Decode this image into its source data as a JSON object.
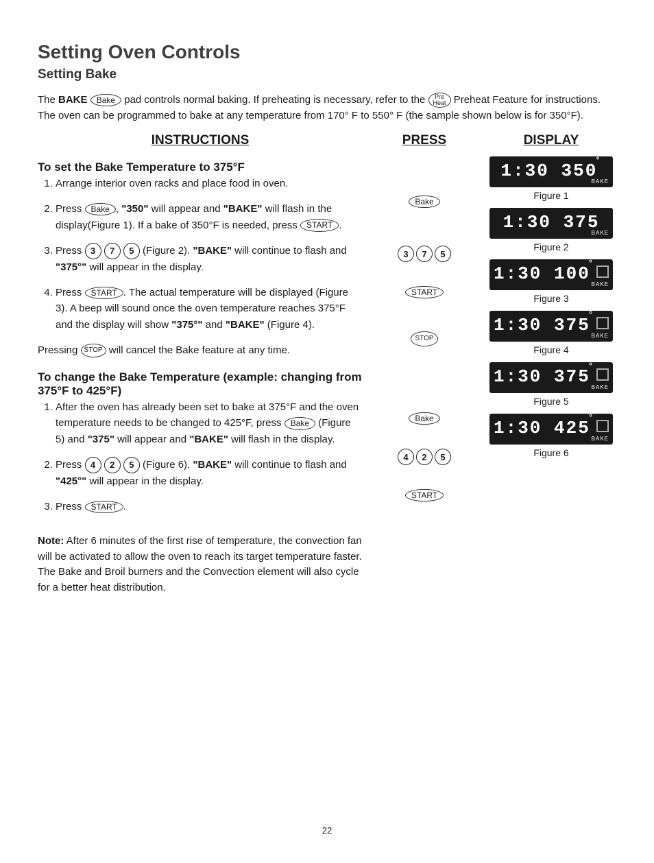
{
  "title": "Setting Oven Controls",
  "subtitle": "Setting Bake",
  "intro_parts": {
    "p1": "The ",
    "bake_word": "BAKE",
    "bake_btn": "Bake",
    "p2": " pad controls normal baking. If preheating is necessary, refer to the ",
    "preheat_btn_l1": "Pre",
    "preheat_btn_l2": "Heat",
    "p3": " Preheat Feature for instructions. The oven can be programmed to bake at any temperature from 170° F to 550° F (the sample shown below is for 350°F)."
  },
  "col_headers": {
    "instructions": "INSTRUCTIONS",
    "press": "PRESS",
    "display": "DISPLAY"
  },
  "section1": {
    "heading": "To set the Bake Temperature to 375°F",
    "item1": "Arrange interior oven racks and place food in oven.",
    "item2_a": "Press ",
    "item2_btn": "Bake",
    "item2_b": ", ",
    "item2_v1": "\"350\"",
    "item2_c": " will appear and ",
    "item2_v2": "\"BAKE\"",
    "item2_d": " will flash in the display(Figure 1). If a bake of 350°F is needed, press ",
    "item2_btn2": "START",
    "item2_e": ".",
    "item3_a": "Press ",
    "item3_d1": "3",
    "item3_d2": "7",
    "item3_d3": "5",
    "item3_b": " (Figure 2). ",
    "item3_v1": "\"BAKE\"",
    "item3_c": " will continue to flash and ",
    "item3_v2": "\"375°\"",
    "item3_d": " will appear in the display.",
    "item4_a": "Press ",
    "item4_btn": "START",
    "item4_b": ". The actual temperature will be displayed (Figure 3). A beep will sound once the oven temperature reaches 375°F and the display will show ",
    "item4_v1": "\"375°\"",
    "item4_c": " and ",
    "item4_v2": "\"BAKE\"",
    "item4_d": " (Figure 4).",
    "stop_a": "Pressing ",
    "stop_btn": "STOP",
    "stop_b": " will cancel the Bake feature at any time."
  },
  "section2": {
    "heading": "To change the Bake Temperature (example: changing from 375°F to 425°F)",
    "item1_a": "After the oven has already been set to bake at 375°F and the oven temperature needs to be changed to 425°F, press ",
    "item1_btn": "Bake",
    "item1_b": " (Figure 5) and ",
    "item1_v1": "\"375\"",
    "item1_c": " will appear and ",
    "item1_v2": "\"BAKE\"",
    "item1_d": " will flash in the display.",
    "item2_a": "Press ",
    "item2_d1": "4",
    "item2_d2": "2",
    "item2_d3": "5",
    "item2_b": " (Figure 6). ",
    "item2_v1": "\"BAKE\"",
    "item2_c": " will continue to flash and ",
    "item2_v2": "\"425°\"",
    "item2_d": " will appear in the display.",
    "item3_a": "Press ",
    "item3_btn": "START",
    "item3_b": "."
  },
  "note": {
    "label": "Note:",
    "text": " After 6 minutes of the first rise of temperature, the convection fan will be activated to allow the oven to reach its target temperature faster. The Bake and Broil burners and the Convection element will also cycle for a better heat distribution."
  },
  "press_buttons": {
    "bake": "Bake",
    "three": "3",
    "seven": "7",
    "five": "5",
    "start": "START",
    "stop": "STOP",
    "four": "4",
    "two": "2"
  },
  "displays": [
    {
      "main_time": "1:30",
      "main_temp": "350",
      "deg": "°",
      "sub": "BAKE",
      "caption": "Figure 1",
      "indicator": false
    },
    {
      "main_time": "1:30",
      "main_temp": "375",
      "deg": "",
      "sub": "BAKE",
      "caption": "Figure 2",
      "indicator": false
    },
    {
      "main_time": "1:30",
      "main_temp": "100",
      "deg": "°",
      "sub": "BAKE",
      "caption": "Figure 3",
      "indicator": true
    },
    {
      "main_time": "1:30",
      "main_temp": "375",
      "deg": "°",
      "sub": "BAKE",
      "caption": "Figure 4",
      "indicator": true
    },
    {
      "main_time": "1:30",
      "main_temp": "375",
      "deg": "°",
      "sub": "BAKE",
      "caption": "Figure 5",
      "indicator": true
    },
    {
      "main_time": "1:30",
      "main_temp": "425",
      "deg": "°",
      "sub": "BAKE",
      "caption": "Figure 6",
      "indicator": true
    }
  ],
  "page_num": "22"
}
